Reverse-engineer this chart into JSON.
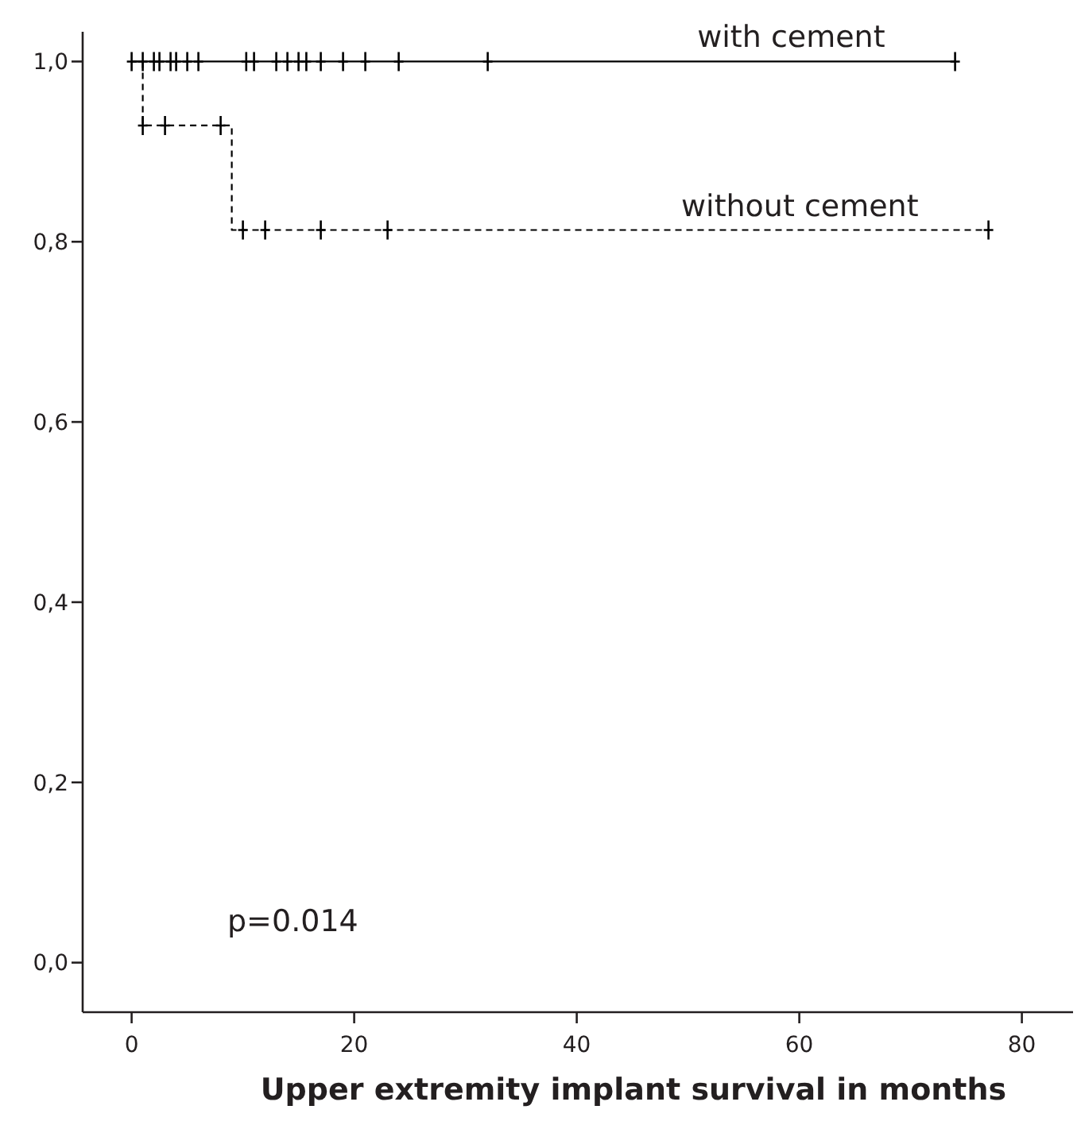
{
  "chart_data": {
    "type": "step",
    "xlabel": "Upper extremity implant survival in months",
    "xlim": [
      -4.4,
      84.6
    ],
    "ylim": [
      -0.055,
      1.033
    ],
    "xticks": [
      0,
      20,
      40,
      60,
      80
    ],
    "yticks": [
      {
        "value": 0,
        "label": "0,0"
      },
      {
        "value": 0.2,
        "label": "0,2"
      },
      {
        "value": 0.4,
        "label": "0,4"
      },
      {
        "value": 0.6,
        "label": "0,6"
      },
      {
        "value": 0.8,
        "label": "0,8"
      },
      {
        "value": 1,
        "label": "1,0"
      }
    ],
    "grid": false,
    "legend": "top right",
    "annotations": [
      "p=0.014"
    ],
    "series": [
      {
        "name": "with cement",
        "color": "#000000",
        "line_style": "solid",
        "marker": "none",
        "x": [
          0,
          74
        ],
        "values": [
          1,
          1
        ]
      },
      {
        "name": "without cement",
        "color": "#000000",
        "line_style": "dashed",
        "marker": "none",
        "x": [
          0,
          1,
          9,
          77
        ],
        "values": [
          1,
          0.929,
          0.813,
          0.813
        ]
      },
      {
        "type": "scatter",
        "color": "#000000",
        "marker": "cross",
        "x": [
          0,
          1,
          2,
          2.5,
          3.5,
          4,
          5,
          6,
          10.3,
          11,
          13,
          14,
          15,
          15.7,
          17,
          19,
          21,
          24,
          32,
          74
        ],
        "values": [
          1,
          1,
          1,
          1,
          1,
          1,
          1,
          1,
          1,
          1,
          1,
          1,
          1,
          1,
          1,
          1,
          1,
          1,
          1,
          1
        ]
      },
      {
        "type": "scatter",
        "color": "#000000",
        "marker": "cross",
        "x": [
          1,
          3,
          8,
          10,
          12,
          17,
          23,
          77
        ],
        "values": [
          0.929,
          0.929,
          0.929,
          0.813,
          0.813,
          0.813,
          0.813,
          0.813
        ]
      }
    ]
  }
}
